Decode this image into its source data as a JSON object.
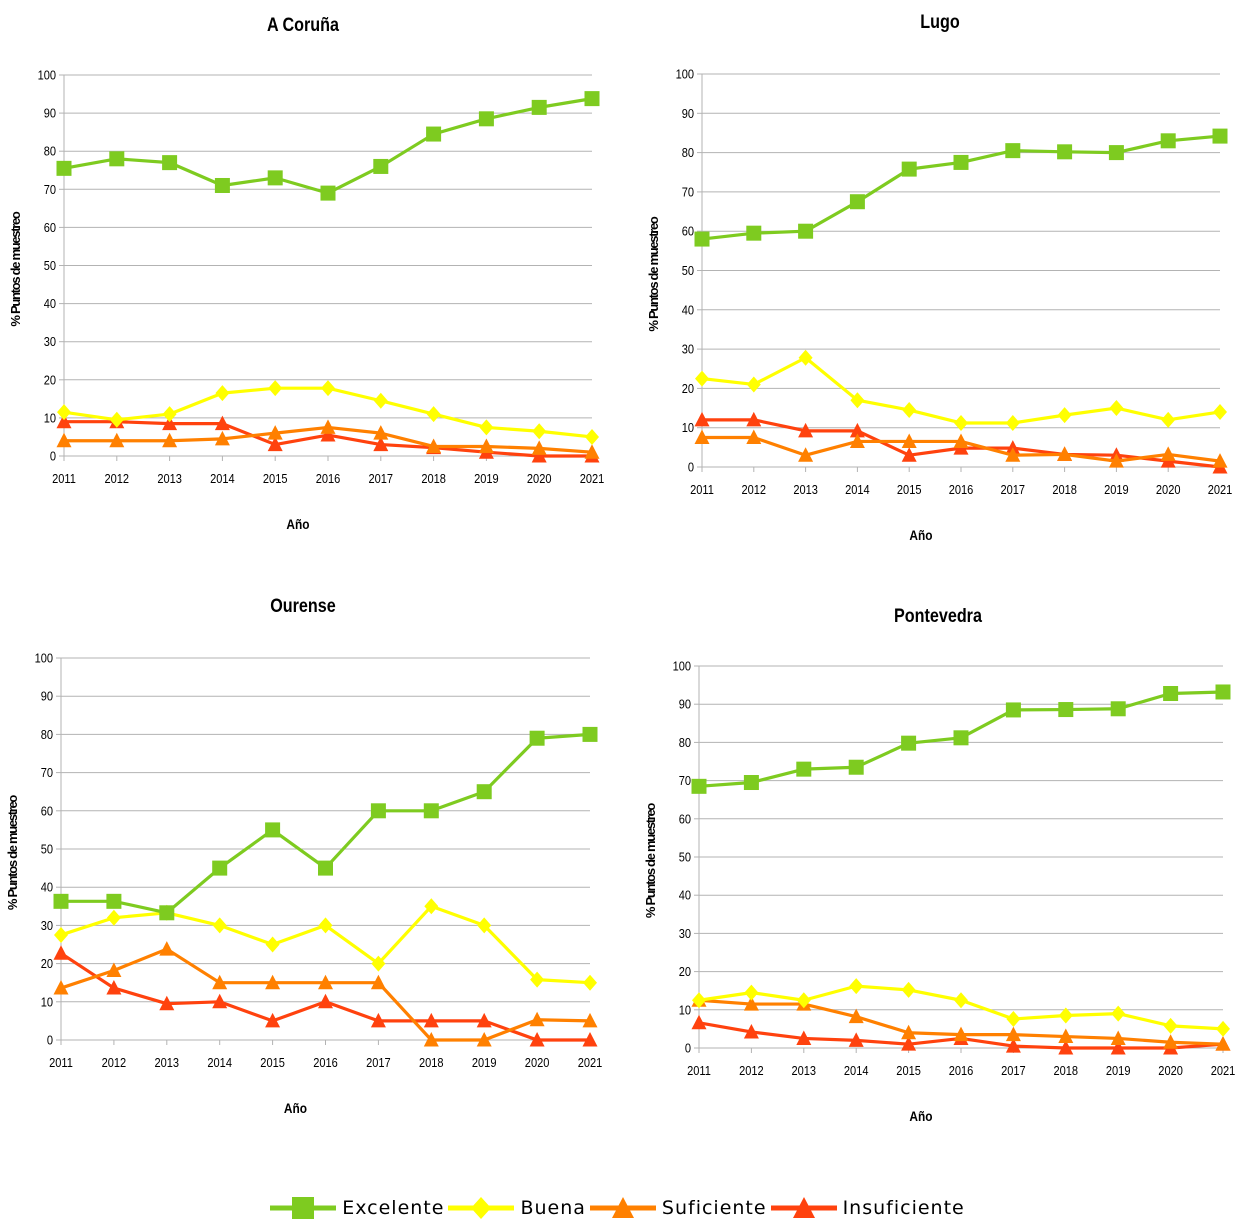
{
  "colors": {
    "Excelente": "#7ecb20",
    "Buena": "#ffff00",
    "Suficiente": "#ff8000",
    "Insuficiente": "#ff420e",
    "grid": "#b3b3b3"
  },
  "legend": [
    {
      "name": "Excelente",
      "marker": "square"
    },
    {
      "name": "Buena",
      "marker": "diamond"
    },
    {
      "name": "Suficiente",
      "marker": "triangle"
    },
    {
      "name": "Insuficiente",
      "marker": "triangle"
    }
  ],
  "chart_data": [
    {
      "type": "line",
      "title": "A Coruña",
      "xlabel": "Año",
      "ylabel": "% Puntos de muestreo",
      "ylim": [
        0,
        100
      ],
      "yticks": [
        0,
        10,
        20,
        30,
        40,
        50,
        60,
        70,
        80,
        90,
        100
      ],
      "x": [
        "2011",
        "2012",
        "2013",
        "2014",
        "2015",
        "2016",
        "2017",
        "2018",
        "2019",
        "2020",
        "2021"
      ],
      "grid": true,
      "series": [
        {
          "name": "Excelente",
          "values": [
            75.5,
            78,
            77,
            71,
            73,
            69,
            76,
            84.5,
            88.5,
            91.5,
            93.8
          ]
        },
        {
          "name": "Buena",
          "values": [
            11.5,
            9.5,
            11,
            16.5,
            17.8,
            17.8,
            14.5,
            11,
            7.5,
            6.5,
            5
          ]
        },
        {
          "name": "Suficiente",
          "values": [
            4,
            4,
            4,
            4.5,
            6,
            7.5,
            6,
            2.5,
            2.5,
            2,
            1
          ]
        },
        {
          "name": "Insuficiente",
          "values": [
            9,
            9,
            8.5,
            8.5,
            3,
            5.5,
            3,
            2.2,
            1,
            0,
            0
          ]
        }
      ]
    },
    {
      "type": "line",
      "title": "Lugo",
      "xlabel": "Año",
      "ylabel": "% Puntos de muestreo",
      "ylim": [
        0,
        100
      ],
      "yticks": [
        0,
        10,
        20,
        30,
        40,
        50,
        60,
        70,
        80,
        90,
        100
      ],
      "x": [
        "2011",
        "2012",
        "2013",
        "2014",
        "2015",
        "2016",
        "2017",
        "2018",
        "2019",
        "2020",
        "2021"
      ],
      "grid": true,
      "series": [
        {
          "name": "Excelente",
          "values": [
            58,
            59.5,
            60,
            67.5,
            75.8,
            77.5,
            80.5,
            80.2,
            80,
            83,
            84.2
          ]
        },
        {
          "name": "Buena",
          "values": [
            22.5,
            21,
            27.8,
            17,
            14.5,
            11.2,
            11.2,
            13.2,
            15,
            12,
            14
          ]
        },
        {
          "name": "Suficiente",
          "values": [
            7.5,
            7.5,
            3,
            6.5,
            6.5,
            6.5,
            3,
            3.2,
            1.5,
            3.2,
            1.5
          ]
        },
        {
          "name": "Insuficiente",
          "values": [
            12,
            12,
            9.2,
            9.2,
            3,
            4.8,
            4.8,
            3.2,
            3,
            1.5,
            0
          ]
        }
      ]
    },
    {
      "type": "line",
      "title": "Ourense",
      "xlabel": "Año",
      "ylabel": "% Puntos de muestreo",
      "ylim": [
        0,
        100
      ],
      "yticks": [
        0,
        10,
        20,
        30,
        40,
        50,
        60,
        70,
        80,
        90,
        100
      ],
      "x": [
        "2011",
        "2012",
        "2013",
        "2014",
        "2015",
        "2016",
        "2017",
        "2018",
        "2019",
        "2020",
        "2021"
      ],
      "grid": true,
      "series": [
        {
          "name": "Excelente",
          "values": [
            36.3,
            36.3,
            33.3,
            45,
            55,
            45,
            60,
            60,
            65,
            79,
            80
          ]
        },
        {
          "name": "Buena",
          "values": [
            27.5,
            32,
            33.3,
            30,
            25,
            30,
            20,
            35,
            30,
            15.8,
            15
          ]
        },
        {
          "name": "Suficiente",
          "values": [
            13.6,
            18.2,
            23.8,
            15,
            15,
            15,
            15,
            0,
            0,
            5.3,
            5
          ]
        },
        {
          "name": "Insuficiente",
          "values": [
            22.7,
            13.6,
            9.5,
            10,
            5,
            10,
            5,
            5,
            5,
            0,
            0
          ]
        }
      ]
    },
    {
      "type": "line",
      "title": "Pontevedra",
      "xlabel": "Año",
      "ylabel": "% Puntos de muestreo",
      "ylim": [
        0,
        100
      ],
      "yticks": [
        0,
        10,
        20,
        30,
        40,
        50,
        60,
        70,
        80,
        90,
        100
      ],
      "x": [
        "2011",
        "2012",
        "2013",
        "2014",
        "2015",
        "2016",
        "2017",
        "2018",
        "2019",
        "2020",
        "2021"
      ],
      "grid": true,
      "series": [
        {
          "name": "Excelente",
          "values": [
            68.5,
            69.5,
            73,
            73.5,
            79.8,
            81.2,
            88.5,
            88.6,
            88.8,
            92.8,
            93.2
          ]
        },
        {
          "name": "Buena",
          "values": [
            12.5,
            14.5,
            12.5,
            16.2,
            15.2,
            12.5,
            7.6,
            8.5,
            9,
            5.8,
            5
          ]
        },
        {
          "name": "Suficiente",
          "values": [
            12.5,
            11.5,
            11.5,
            8.2,
            4,
            3.5,
            3.5,
            3,
            2.5,
            1.5,
            1
          ]
        },
        {
          "name": "Insuficiente",
          "values": [
            6.6,
            4.2,
            2.5,
            2,
            1,
            2.5,
            0.5,
            0,
            0,
            0,
            1
          ]
        }
      ]
    }
  ]
}
